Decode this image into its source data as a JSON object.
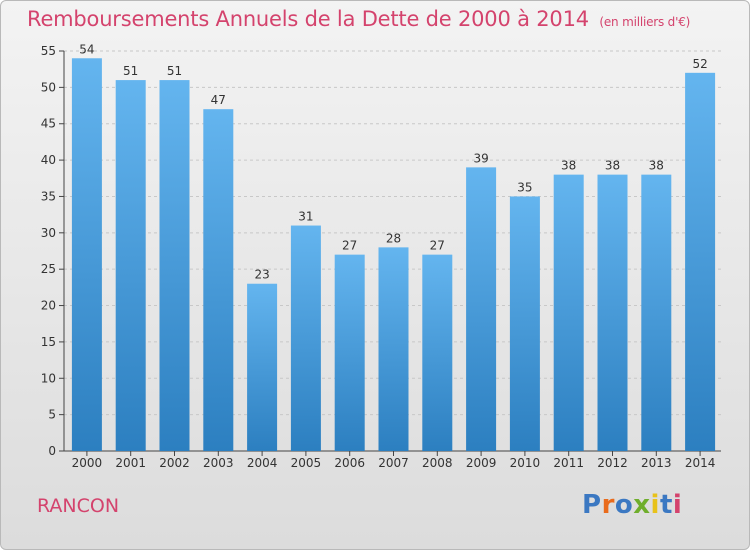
{
  "chart_data": {
    "type": "bar",
    "title": "Remboursements Annuels de la Dette de 2000 à 2014",
    "subtitle": "(en milliers d'€)",
    "categories": [
      "2000",
      "2001",
      "2002",
      "2003",
      "2004",
      "2005",
      "2006",
      "2007",
      "2008",
      "2009",
      "2010",
      "2011",
      "2012",
      "2013",
      "2014"
    ],
    "values": [
      54,
      51,
      51,
      47,
      23,
      31,
      27,
      28,
      27,
      39,
      35,
      38,
      38,
      38,
      52
    ],
    "ylim": [
      0,
      55
    ],
    "yticks": [
      0,
      5,
      10,
      15,
      20,
      25,
      30,
      35,
      40,
      45,
      50,
      55
    ],
    "grid": true,
    "xlabel": "",
    "ylabel": ""
  },
  "footer": {
    "town": "RANCON",
    "logo_text": "Proxiti",
    "logo_colors": [
      "#3b78c2",
      "#e96b1c",
      "#3b78c2",
      "#6fae2c",
      "#e8c21a",
      "#3b78c2",
      "#d4436d"
    ]
  },
  "colors": {
    "title": "#d4436d",
    "bar_top": "#64b5ef",
    "bar_bottom": "#2c7fc0",
    "axis": "#444444"
  }
}
